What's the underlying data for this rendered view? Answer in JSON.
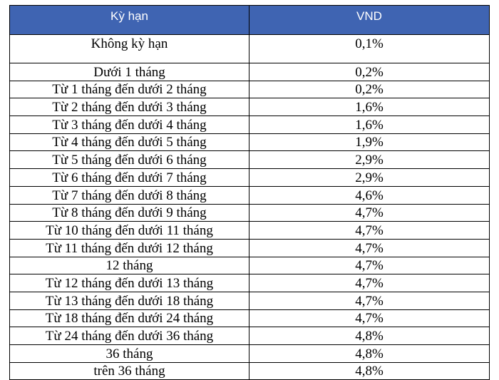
{
  "table": {
    "headers": [
      "Kỳ hạn",
      "VND"
    ],
    "rows": [
      {
        "term": "Không kỳ hạn",
        "rate": "0,1%"
      },
      {
        "term": "Dưới 1 tháng",
        "rate": "0,2%"
      },
      {
        "term": "Từ 1 tháng đến dưới 2 tháng",
        "rate": "0,2%"
      },
      {
        "term": "Từ 2 tháng đến dưới 3 tháng",
        "rate": "1,6%"
      },
      {
        "term": "Từ 3 tháng đến dưới 4 tháng",
        "rate": "1,6%"
      },
      {
        "term": "Từ 4 tháng đến dưới 5 tháng",
        "rate": "1,9%"
      },
      {
        "term": "Từ 5 tháng đến dưới 6 tháng",
        "rate": "2,9%"
      },
      {
        "term": "Từ 6 tháng đến dưới 7 tháng",
        "rate": "2,9%"
      },
      {
        "term": "Từ 7 tháng đến dưới 8 tháng",
        "rate": "4,6%"
      },
      {
        "term": "Từ 8 tháng đến dưới 9 tháng",
        "rate": "4,7%"
      },
      {
        "term": "Từ 10 tháng đến dưới 11 tháng",
        "rate": "4,7%"
      },
      {
        "term": "Từ 11 tháng đến dưới 12 tháng",
        "rate": "4,7%"
      },
      {
        "term": "12 tháng",
        "rate": "4,7%"
      },
      {
        "term": "Từ 12 tháng đến dưới 13 tháng",
        "rate": "4,7%"
      },
      {
        "term": "Từ 13 tháng đến dưới 18 tháng",
        "rate": "4,7%"
      },
      {
        "term": "Từ 18 tháng đến dưới 24 tháng",
        "rate": "4,7%"
      },
      {
        "term": "Từ 24 tháng đến dưới 36 tháng",
        "rate": "4,8%"
      },
      {
        "term": "36 tháng",
        "rate": "4,8%"
      },
      {
        "term": "trên 36 tháng",
        "rate": "4,8%"
      }
    ]
  },
  "colors": {
    "header_background": "#3f64b2",
    "header_text": "#ffffff",
    "border": "#000000"
  }
}
